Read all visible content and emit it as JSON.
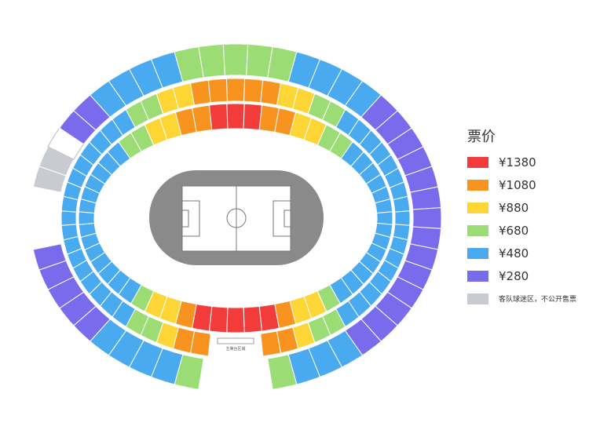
{
  "legend": {
    "title": "票价",
    "items": [
      {
        "key": "p1380",
        "label": "¥1380",
        "color": "#f23c3c"
      },
      {
        "key": "p1080",
        "label": "¥1080",
        "color": "#f7931e"
      },
      {
        "key": "p880",
        "label": "¥880",
        "color": "#fdd535"
      },
      {
        "key": "p680",
        "label": "¥680",
        "color": "#9bdc74"
      },
      {
        "key": "p480",
        "label": "¥480",
        "color": "#4aaaf0"
      },
      {
        "key": "p280",
        "label": "¥280",
        "color": "#7a6aec"
      },
      {
        "key": "away",
        "label": "客队球迷区，不公开售票",
        "color": "#c8ccd2"
      }
    ]
  },
  "map": {
    "vip_area_label": "主席台区域",
    "track_color": "#8a8a8a",
    "pitch_color": "#ffffff"
  }
}
